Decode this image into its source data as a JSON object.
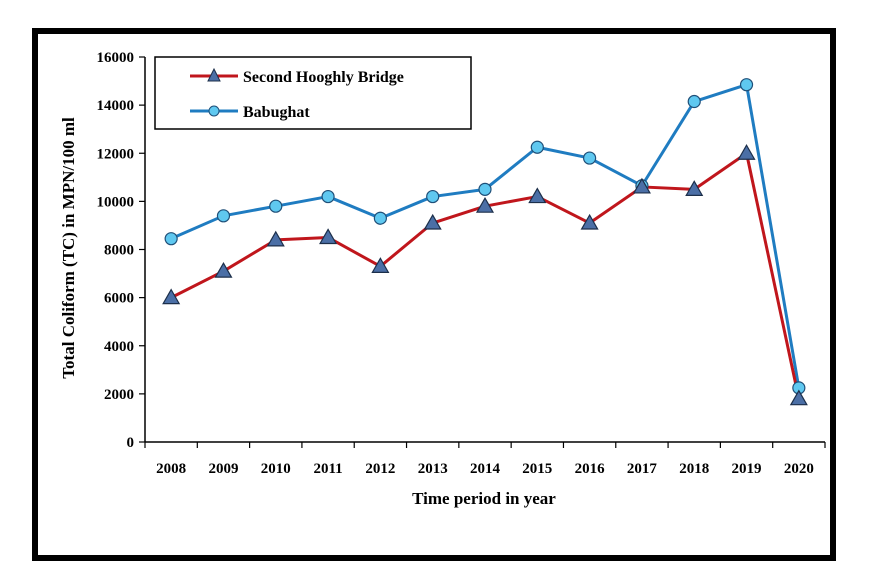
{
  "chart_data": {
    "type": "line",
    "xlabel": "Time period  in year",
    "ylabel": "Total Coliform (TC) in MPN/100 ml",
    "categories": [
      "2008",
      "2009",
      "2010",
      "2011",
      "2012",
      "2013",
      "2014",
      "2015",
      "2016",
      "2017",
      "2018",
      "2019",
      "2020"
    ],
    "ylim": [
      0,
      16000
    ],
    "yticks": [
      "0",
      "2000",
      "4000",
      "6000",
      "8000",
      "10000",
      "12000",
      "14000",
      "16000"
    ],
    "grid": false,
    "legend_position": "top-left",
    "series": [
      {
        "name": "Second Hooghly Bridge",
        "color": "#c0161c",
        "marker": "triangle",
        "marker_color": "#4b6fa6",
        "values": [
          6000,
          7100,
          8400,
          8500,
          7300,
          9100,
          9800,
          10200,
          9100,
          10600,
          10500,
          12000,
          1800
        ]
      },
      {
        "name": "Babughat",
        "color": "#1f7cc1",
        "marker": "circle",
        "marker_color": "#5fc8f0",
        "values": [
          8450,
          9400,
          9800,
          10200,
          9300,
          10200,
          10500,
          12250,
          11800,
          10650,
          14150,
          14850,
          2250
        ]
      }
    ]
  }
}
